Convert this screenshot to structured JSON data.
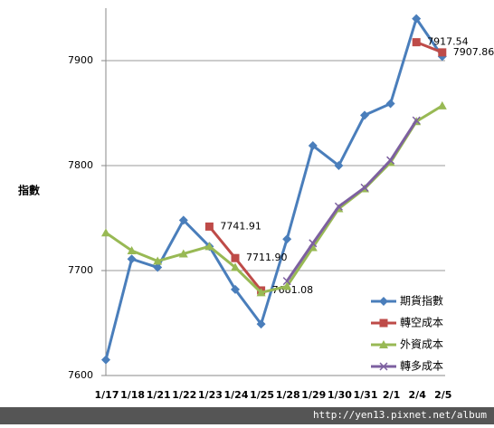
{
  "chart_data": {
    "type": "line",
    "y_label": "指數",
    "categories": [
      "1/17",
      "1/18",
      "1/21",
      "1/22",
      "1/23",
      "1/24",
      "1/25",
      "1/28",
      "1/29",
      "1/30",
      "1/31",
      "2/1",
      "2/4",
      "2/5"
    ],
    "ylim": [
      7600,
      7950
    ],
    "yticks": [
      7600,
      7700,
      7800,
      7900
    ],
    "grid": true,
    "legend": "bottom-right",
    "series": [
      {
        "name": "期貨指數",
        "color": "#4a7ebb",
        "marker": "diamond",
        "values": [
          7615,
          7711,
          7703,
          7748,
          7723,
          7682,
          7649,
          7730,
          7819,
          7800,
          7848,
          7859,
          7940,
          7904
        ]
      },
      {
        "name": "轉空成本",
        "color": "#be4b48",
        "marker": "square",
        "values": [
          null,
          null,
          null,
          null,
          7741.91,
          7711.9,
          7681.08,
          null,
          null,
          null,
          null,
          null,
          7917.54,
          7907.86
        ],
        "value_labels": [
          null,
          null,
          null,
          null,
          "7741.91",
          "7711.90",
          "7681.08",
          null,
          null,
          null,
          null,
          null,
          "7917.54",
          "7907.86"
        ]
      },
      {
        "name": "外資成本",
        "color": "#98b954",
        "marker": "triangle",
        "values": [
          7736,
          7719,
          7709,
          7716,
          7723,
          7703,
          7679,
          7685,
          7722,
          7759,
          7778,
          7803,
          7842,
          7857
        ]
      },
      {
        "name": "轉多成本",
        "color": "#7d60a0",
        "marker": "x",
        "values": [
          null,
          null,
          null,
          null,
          null,
          null,
          null,
          7690,
          7726,
          7761,
          7779,
          7805,
          7843,
          null
        ]
      }
    ]
  },
  "watermark": "http://yen13.pixnet.net/album"
}
